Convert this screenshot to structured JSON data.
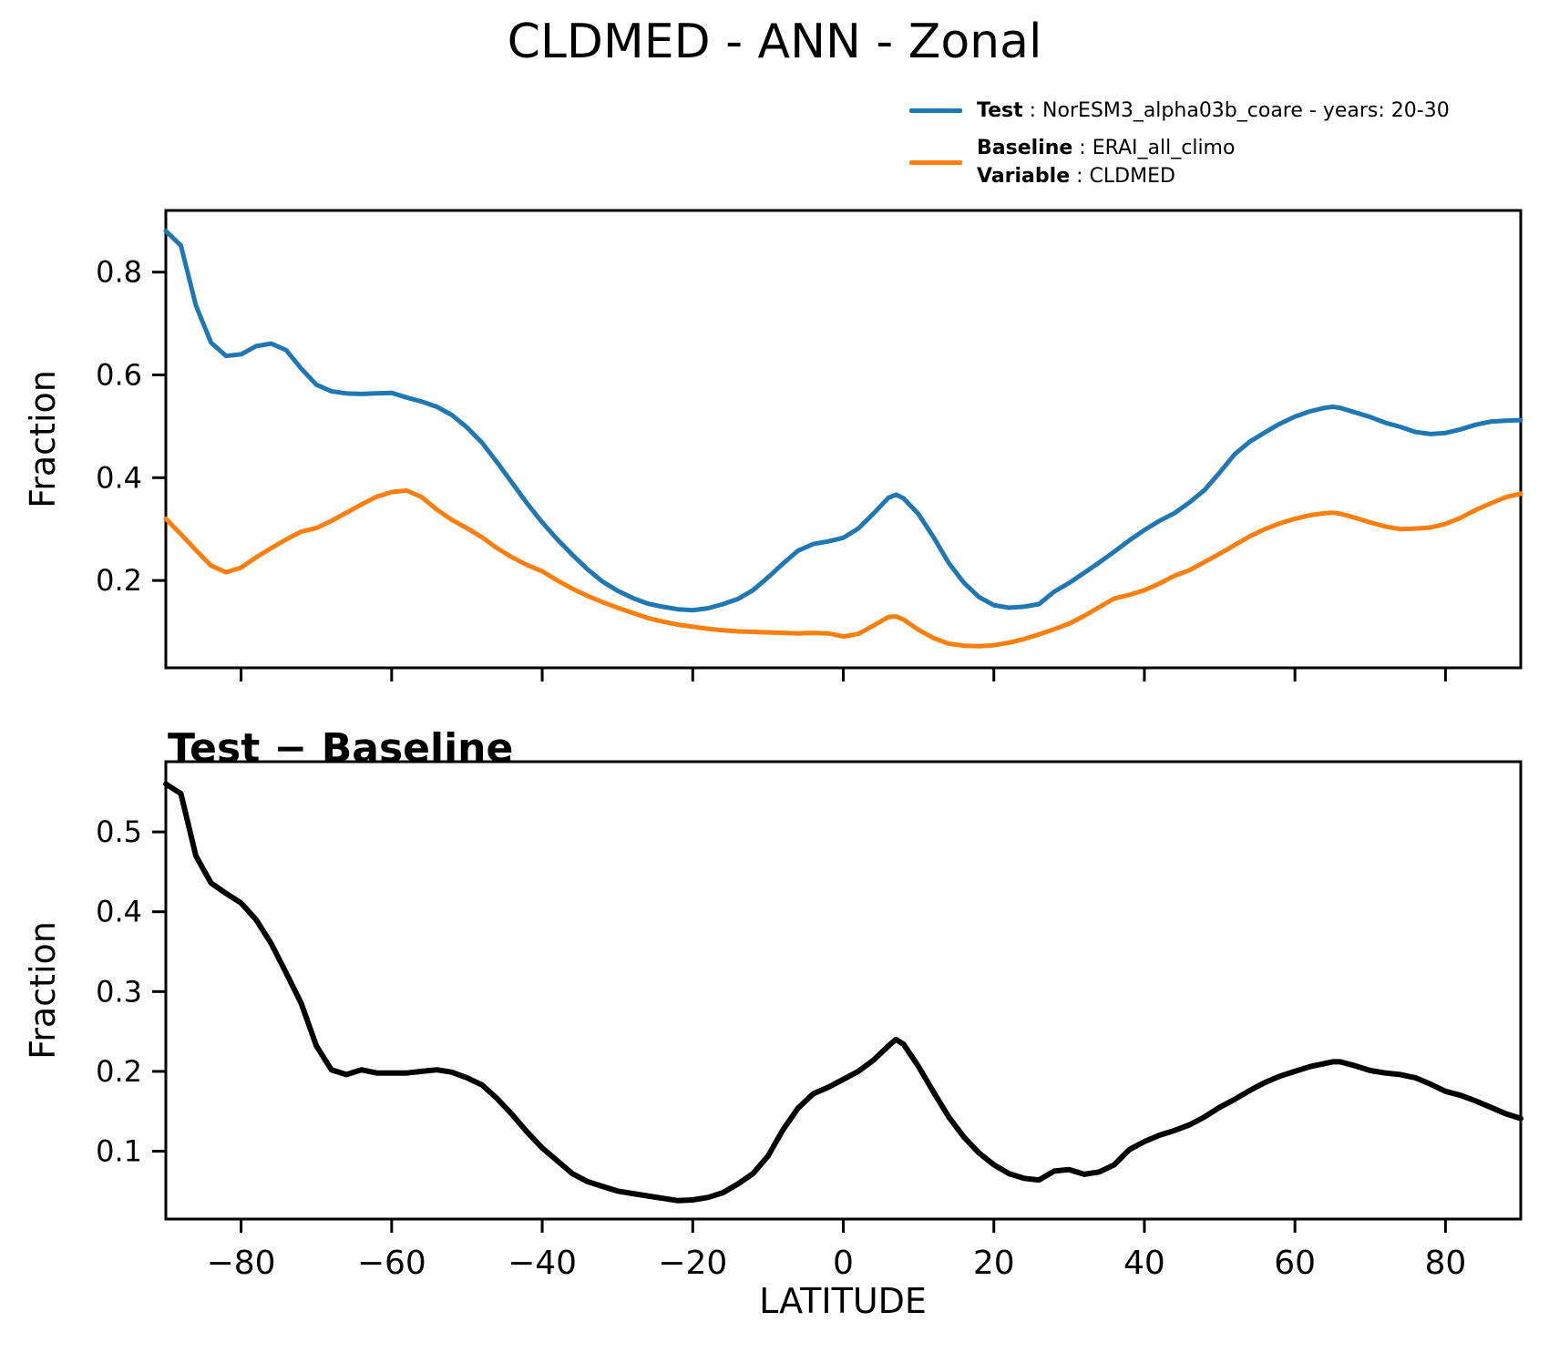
{
  "title": "CLDMED - ANN - Zonal",
  "legend": {
    "test_label": "Test",
    "test_value": " : NorESM3_alpha03b_coare - years: 20-30",
    "baseline_label": "Baseline",
    "baseline_value": " : ERAI_all_climo",
    "variable_label": "Variable",
    "variable_value": " : CLDMED",
    "test_color": "#1f77b4",
    "baseline_color": "#ff7f0e"
  },
  "panels": {
    "top": {
      "ylabel": "Fraction"
    },
    "bottom": {
      "title": "Test − Baseline",
      "ylabel": "Fraction",
      "xlabel": "LATITUDE"
    }
  },
  "chart_data": [
    {
      "type": "line",
      "title": "CLDMED - ANN - Zonal",
      "xlabel": "",
      "ylabel": "Fraction",
      "xlim": [
        -90,
        90
      ],
      "ylim": [
        0.03,
        0.92
      ],
      "xticks": [
        -80,
        -60,
        -40,
        -20,
        0,
        20,
        40,
        60,
        80
      ],
      "xticklabels": [
        "−80",
        "−60",
        "−40",
        "−20",
        "0",
        "20",
        "40",
        "60",
        "80"
      ],
      "show_xticklabels": false,
      "yticks": [
        0.2,
        0.4,
        0.6,
        0.8
      ],
      "yticklabels": [
        "0.2",
        "0.4",
        "0.6",
        "0.8"
      ],
      "grid": false,
      "legend_position": "upper right outside",
      "x": [
        -90,
        -88,
        -86,
        -84,
        -82,
        -80,
        -78,
        -76,
        -74,
        -72,
        -70,
        -68,
        -66,
        -64,
        -62,
        -60,
        -58,
        -56,
        -54,
        -52,
        -50,
        -48,
        -46,
        -44,
        -42,
        -40,
        -38,
        -36,
        -34,
        -32,
        -30,
        -28,
        -26,
        -24,
        -22,
        -20,
        -18,
        -16,
        -14,
        -12,
        -10,
        -8,
        -6,
        -4,
        -2,
        0,
        2,
        4,
        6,
        7,
        8,
        10,
        12,
        14,
        16,
        18,
        20,
        22,
        24,
        26,
        28,
        30,
        32,
        34,
        36,
        38,
        40,
        42,
        44,
        46,
        48,
        50,
        52,
        54,
        56,
        58,
        60,
        62,
        64,
        65,
        66,
        68,
        70,
        72,
        74,
        76,
        78,
        80,
        82,
        84,
        86,
        88,
        90
      ],
      "series": [
        {
          "id": "test",
          "name": "Test : NorESM3_alpha03b_coare - years: 20-30",
          "color": "#1f77b4",
          "width": 5,
          "values": [
            0.88,
            0.852,
            0.735,
            0.663,
            0.637,
            0.64,
            0.656,
            0.661,
            0.648,
            0.612,
            0.581,
            0.568,
            0.564,
            0.563,
            0.564,
            0.565,
            0.556,
            0.548,
            0.538,
            0.522,
            0.498,
            0.468,
            0.43,
            0.39,
            0.35,
            0.313,
            0.28,
            0.25,
            0.222,
            0.198,
            0.18,
            0.166,
            0.155,
            0.149,
            0.144,
            0.142,
            0.146,
            0.154,
            0.164,
            0.181,
            0.206,
            0.233,
            0.258,
            0.271,
            0.276,
            0.283,
            0.301,
            0.33,
            0.361,
            0.367,
            0.36,
            0.329,
            0.284,
            0.234,
            0.196,
            0.168,
            0.152,
            0.147,
            0.149,
            0.154,
            0.178,
            0.195,
            0.215,
            0.235,
            0.256,
            0.278,
            0.298,
            0.316,
            0.331,
            0.352,
            0.376,
            0.41,
            0.446,
            0.47,
            0.488,
            0.505,
            0.519,
            0.529,
            0.536,
            0.538,
            0.536,
            0.527,
            0.518,
            0.507,
            0.499,
            0.489,
            0.485,
            0.487,
            0.494,
            0.503,
            0.509,
            0.511,
            0.512
          ]
        },
        {
          "id": "baseline",
          "name": "Baseline : ERAI_all_climo  Variable : CLDMED",
          "color": "#ff7f0e",
          "width": 5,
          "values": [
            0.32,
            0.29,
            0.259,
            0.229,
            0.216,
            0.225,
            0.245,
            0.263,
            0.28,
            0.295,
            0.302,
            0.316,
            0.332,
            0.348,
            0.363,
            0.372,
            0.375,
            0.362,
            0.338,
            0.318,
            0.302,
            0.284,
            0.263,
            0.245,
            0.23,
            0.218,
            0.2,
            0.184,
            0.17,
            0.158,
            0.147,
            0.137,
            0.127,
            0.12,
            0.114,
            0.11,
            0.106,
            0.103,
            0.101,
            0.1,
            0.099,
            0.098,
            0.097,
            0.098,
            0.097,
            0.091,
            0.096,
            0.112,
            0.129,
            0.13,
            0.124,
            0.104,
            0.088,
            0.077,
            0.073,
            0.072,
            0.074,
            0.079,
            0.086,
            0.095,
            0.105,
            0.116,
            0.131,
            0.148,
            0.165,
            0.172,
            0.181,
            0.194,
            0.209,
            0.22,
            0.236,
            0.252,
            0.269,
            0.286,
            0.3,
            0.311,
            0.32,
            0.327,
            0.331,
            0.332,
            0.33,
            0.322,
            0.313,
            0.305,
            0.3,
            0.301,
            0.303,
            0.31,
            0.322,
            0.337,
            0.35,
            0.362,
            0.369
          ]
        }
      ]
    },
    {
      "type": "line",
      "title": "Test − Baseline",
      "xlabel": "LATITUDE",
      "ylabel": "Fraction",
      "xlim": [
        -90,
        90
      ],
      "ylim": [
        0.015,
        0.588
      ],
      "xticks": [
        -80,
        -60,
        -40,
        -20,
        0,
        20,
        40,
        60,
        80
      ],
      "xticklabels": [
        "−80",
        "−60",
        "−40",
        "−20",
        "0",
        "20",
        "40",
        "60",
        "80"
      ],
      "show_xticklabels": true,
      "yticks": [
        0.1,
        0.2,
        0.3,
        0.4,
        0.5
      ],
      "yticklabels": [
        "0.1",
        "0.2",
        "0.3",
        "0.4",
        "0.5"
      ],
      "grid": false,
      "x": [
        -90,
        -88,
        -86,
        -84,
        -82,
        -80,
        -78,
        -76,
        -74,
        -72,
        -70,
        -68,
        -66,
        -64,
        -62,
        -60,
        -58,
        -56,
        -54,
        -52,
        -50,
        -48,
        -46,
        -44,
        -42,
        -40,
        -38,
        -36,
        -34,
        -32,
        -30,
        -28,
        -26,
        -24,
        -22,
        -20,
        -18,
        -16,
        -14,
        -12,
        -10,
        -8,
        -6,
        -4,
        -2,
        0,
        2,
        4,
        6,
        7,
        8,
        10,
        12,
        14,
        16,
        18,
        20,
        22,
        24,
        26,
        28,
        30,
        32,
        34,
        36,
        38,
        40,
        42,
        44,
        46,
        48,
        50,
        52,
        54,
        56,
        58,
        60,
        62,
        64,
        65,
        66,
        68,
        70,
        72,
        74,
        76,
        78,
        80,
        82,
        84,
        86,
        88,
        90
      ],
      "series": [
        {
          "id": "diff",
          "name": "Test minus Baseline",
          "color": "#000000",
          "width": 6,
          "values": [
            0.56,
            0.548,
            0.47,
            0.436,
            0.423,
            0.411,
            0.39,
            0.36,
            0.323,
            0.285,
            0.232,
            0.202,
            0.196,
            0.202,
            0.198,
            0.198,
            0.198,
            0.2,
            0.202,
            0.199,
            0.192,
            0.183,
            0.166,
            0.146,
            0.124,
            0.104,
            0.088,
            0.072,
            0.062,
            0.056,
            0.05,
            0.047,
            0.044,
            0.041,
            0.038,
            0.039,
            0.042,
            0.048,
            0.059,
            0.072,
            0.094,
            0.127,
            0.154,
            0.172,
            0.18,
            0.19,
            0.2,
            0.214,
            0.232,
            0.24,
            0.234,
            0.206,
            0.174,
            0.143,
            0.118,
            0.098,
            0.083,
            0.072,
            0.066,
            0.064,
            0.075,
            0.077,
            0.071,
            0.074,
            0.083,
            0.102,
            0.112,
            0.12,
            0.126,
            0.133,
            0.143,
            0.155,
            0.165,
            0.176,
            0.186,
            0.194,
            0.2,
            0.206,
            0.21,
            0.212,
            0.212,
            0.207,
            0.201,
            0.198,
            0.196,
            0.192,
            0.184,
            0.175,
            0.17,
            0.163,
            0.155,
            0.147,
            0.141
          ]
        }
      ]
    }
  ]
}
